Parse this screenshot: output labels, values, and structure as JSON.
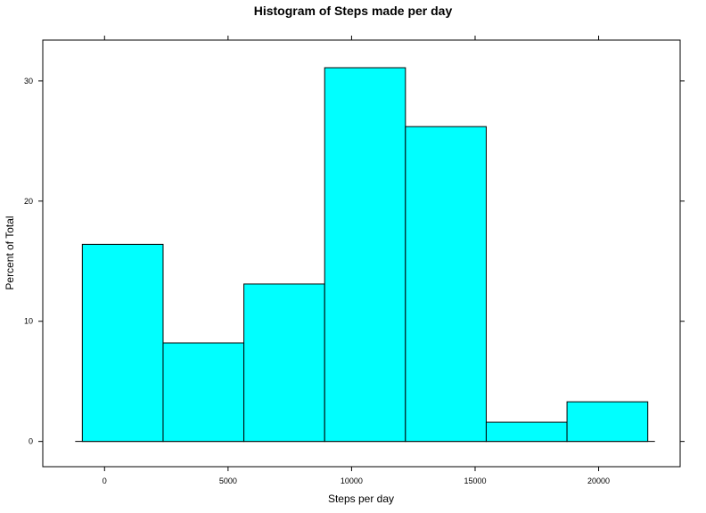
{
  "chart_data": {
    "type": "bar",
    "title": "Histogram of Steps made per day",
    "xlabel": "Steps per day",
    "ylabel": "Percent of Total",
    "bins": [
      {
        "from": -900,
        "to": 2370,
        "value": 16.4
      },
      {
        "from": 2370,
        "to": 5640,
        "value": 8.2
      },
      {
        "from": 5640,
        "to": 8910,
        "value": 13.1
      },
      {
        "from": 8910,
        "to": 12180,
        "value": 31.1
      },
      {
        "from": 12180,
        "to": 15450,
        "value": 26.2
      },
      {
        "from": 15450,
        "to": 18720,
        "value": 1.6
      },
      {
        "from": 18720,
        "to": 21990,
        "value": 3.3
      }
    ],
    "xlim": [
      -2500,
      23300
    ],
    "ylim": [
      -2.1,
      33.4
    ],
    "xticks": [
      0,
      5000,
      10000,
      15000,
      20000
    ],
    "xtick_labels": [
      "0",
      "5000",
      "10000",
      "15000",
      "20000"
    ],
    "yticks": [
      0,
      10,
      20,
      30
    ],
    "ytick_labels": [
      "0",
      "10",
      "20",
      "30"
    ],
    "bar_color": "#00FFFF",
    "grid": false
  }
}
